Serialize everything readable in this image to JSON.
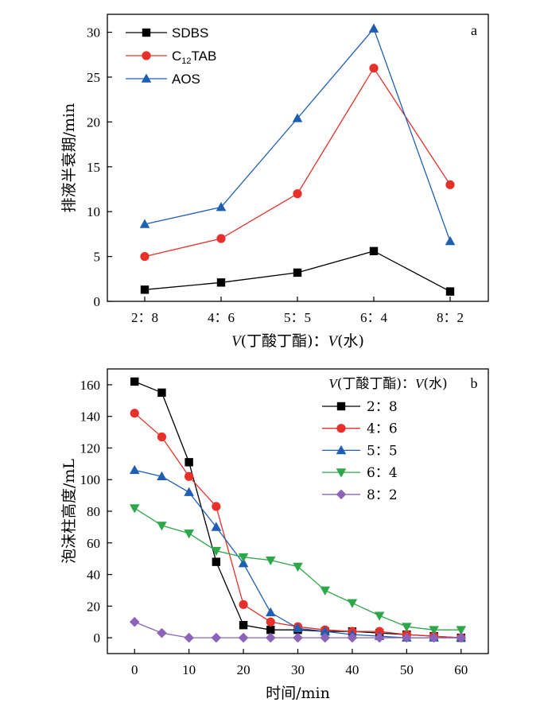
{
  "chart_data": [
    {
      "type": "line",
      "panel_label": "a",
      "categories": [
        "2：8",
        "4：6",
        "5：5",
        "6：4",
        "8：2"
      ],
      "xlabel": "V(丁酸丁酯)：V(水)",
      "ylabel": "排液半衰期/min",
      "ylim": [
        0,
        32
      ],
      "yticks": [
        0,
        5,
        10,
        15,
        20,
        25,
        30
      ],
      "grid": false,
      "legend_position": "top-left",
      "series": [
        {
          "name": "SDBS",
          "legend_text": "SDBS",
          "legend_sub": "",
          "legend_suffix": "",
          "color": "#000000",
          "marker": "square",
          "values": [
            1.3,
            2.1,
            3.2,
            5.6,
            1.1
          ]
        },
        {
          "name": "C12TAB",
          "legend_text": "C",
          "legend_sub": "12",
          "legend_suffix": "TAB",
          "color": "#e8302a",
          "marker": "circle",
          "values": [
            5.0,
            7.0,
            12.0,
            26.0,
            13.0
          ]
        },
        {
          "name": "AOS",
          "legend_text": "AOS",
          "legend_sub": "",
          "legend_suffix": "",
          "color": "#1f5fb3",
          "marker": "triangle-up",
          "values": [
            8.6,
            10.5,
            20.4,
            30.4,
            6.7
          ]
        }
      ]
    },
    {
      "type": "line",
      "panel_label": "b",
      "x": [
        0,
        5,
        10,
        15,
        20,
        25,
        30,
        35,
        40,
        45,
        50,
        55,
        60
      ],
      "xticks": [
        0,
        10,
        20,
        30,
        40,
        50,
        60
      ],
      "xlim": [
        -5,
        65
      ],
      "xlabel": "时间/min",
      "ylabel": "泡沫柱高度/mL",
      "ylim": [
        -10,
        170
      ],
      "yticks": [
        0,
        20,
        40,
        60,
        80,
        100,
        120,
        140,
        160
      ],
      "grid": false,
      "legend_title": "V(丁酸丁酯)：V(水)",
      "legend_position": "top-right",
      "series": [
        {
          "name": "2：8",
          "color": "#000000",
          "marker": "square",
          "values": [
            162,
            155,
            111,
            48,
            8,
            5,
            5,
            4,
            4,
            3,
            2,
            1,
            0
          ]
        },
        {
          "name": "4：6",
          "color": "#e8302a",
          "marker": "circle",
          "values": [
            142,
            127,
            102,
            83,
            21,
            10,
            7,
            5,
            4,
            4,
            2,
            1,
            0
          ]
        },
        {
          "name": "5：5",
          "color": "#1f5fb3",
          "marker": "triangle-up",
          "values": [
            106,
            102,
            92,
            70,
            47,
            16,
            6,
            4,
            2,
            1,
            0,
            0,
            0
          ]
        },
        {
          "name": "6：4",
          "color": "#2ea74a",
          "marker": "triangle-down",
          "values": [
            82,
            71,
            66,
            55,
            51,
            49,
            45,
            30,
            22,
            14,
            7,
            5,
            5
          ]
        },
        {
          "name": "8：2",
          "color": "#8b63b8",
          "marker": "diamond",
          "values": [
            10,
            3,
            0,
            0,
            0,
            0,
            0,
            0,
            0,
            0,
            0,
            0,
            0
          ]
        }
      ]
    }
  ]
}
